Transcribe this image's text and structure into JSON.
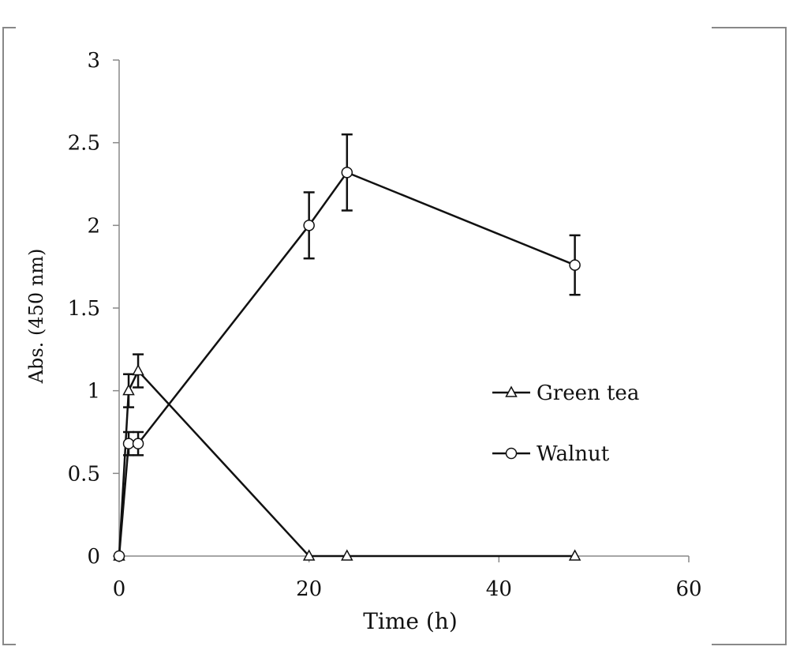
{
  "chart_data": {
    "type": "line",
    "title": "",
    "xlabel": "Time (h)",
    "ylabel": "Abs. (450 nm)",
    "xlim": [
      0,
      60
    ],
    "ylim": [
      0,
      3
    ],
    "xticks": [
      0,
      20,
      40,
      60
    ],
    "yticks": [
      0,
      0.5,
      1,
      1.5,
      2,
      2.5,
      3
    ],
    "xtick_labels": [
      "0",
      "20",
      "40",
      "60"
    ],
    "ytick_labels": [
      "0",
      "0.5",
      "1",
      "1.5",
      "2",
      "2.5",
      "3"
    ],
    "grid": false,
    "legend_placement": "right",
    "series": [
      {
        "name": "Green tea",
        "marker": "triangle",
        "x": [
          0,
          1,
          2,
          20,
          24,
          48
        ],
        "y": [
          0,
          1.0,
          1.12,
          0,
          0,
          0
        ],
        "error": [
          0,
          0.1,
          0.1,
          0,
          0,
          0
        ]
      },
      {
        "name": "Walnut",
        "marker": "circle",
        "x": [
          0,
          1,
          2,
          20,
          24,
          48
        ],
        "y": [
          0,
          0.68,
          0.68,
          2.0,
          2.32,
          1.76
        ],
        "error": [
          0,
          0.07,
          0.07,
          0.2,
          0.23,
          0.18
        ]
      }
    ],
    "colors": {
      "line": "#111111",
      "axis": "#888888",
      "frame": "#888888"
    }
  }
}
